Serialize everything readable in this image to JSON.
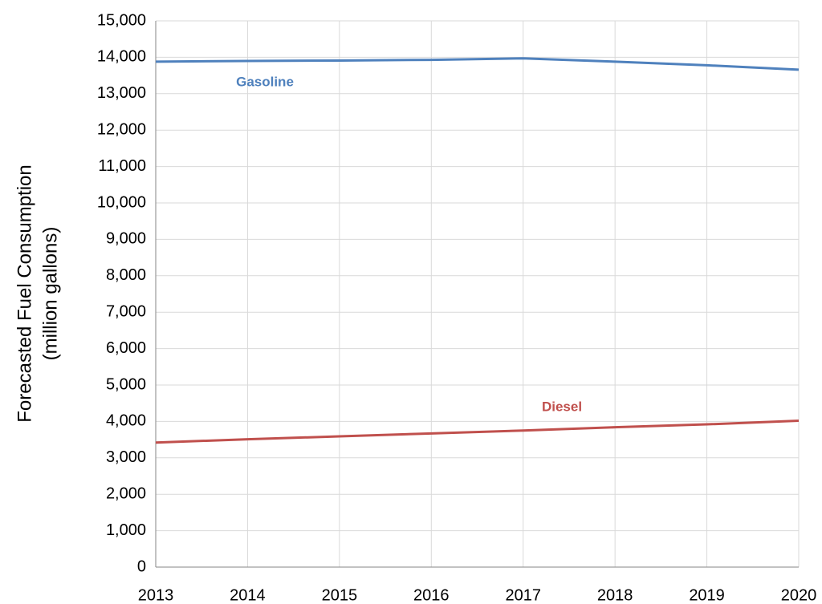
{
  "chart_data": {
    "type": "line",
    "ylabel": [
      "Forecasted Fuel Consumption",
      "(million gallons)"
    ],
    "x": [
      2013,
      2014,
      2015,
      2016,
      2017,
      2018,
      2019,
      2020
    ],
    "series": [
      {
        "name": "Gasoline",
        "color": "#4f81bd",
        "values": [
          13880,
          13900,
          13910,
          13930,
          13970,
          13880,
          13780,
          13660
        ]
      },
      {
        "name": "Diesel",
        "color": "#c0504d",
        "values": [
          3420,
          3510,
          3590,
          3670,
          3750,
          3840,
          3920,
          4020
        ]
      }
    ],
    "xlim": [
      2013,
      2020
    ],
    "xticks": [
      2013,
      2014,
      2015,
      2016,
      2017,
      2018,
      2019,
      2020
    ],
    "ylim": [
      0,
      15000
    ],
    "yticks": [
      0,
      {
        "value": 1000,
        "label": "1,000"
      },
      {
        "value": 2000,
        "label": "2,000"
      },
      {
        "value": 3000,
        "label": "3,000"
      },
      {
        "value": 4000,
        "label": "4,000"
      },
      {
        "value": 5000,
        "label": "5,000"
      },
      {
        "value": 6000,
        "label": "6,000"
      },
      {
        "value": 7000,
        "label": "7,000"
      },
      {
        "value": 8000,
        "label": "8,000"
      },
      {
        "value": 9000,
        "label": "9,000"
      },
      {
        "value": 10000,
        "label": "10,000"
      },
      {
        "value": 11000,
        "label": "11,000"
      },
      {
        "value": 12000,
        "label": "12,000"
      },
      {
        "value": 13000,
        "label": "13,000"
      },
      {
        "value": 14000,
        "label": "14,000"
      },
      {
        "value": 15000,
        "label": "15,000"
      }
    ],
    "grid": true
  }
}
